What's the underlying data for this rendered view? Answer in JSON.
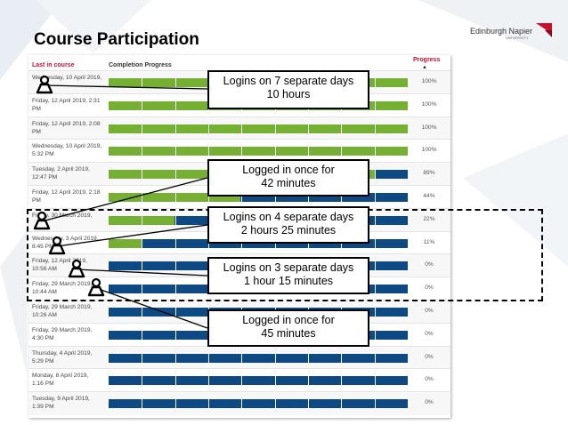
{
  "slide": {
    "title": "Course Participation",
    "logo_text": "Edinburgh Napier",
    "logo_subtext": "UNIVERSITY",
    "accent_color": "#c8102e"
  },
  "report": {
    "headers": {
      "last_in_course": "Last in course",
      "completion_progress": "Completion Progress",
      "progress": "Progress",
      "sort_icon": "sort-up-icon"
    },
    "complete_color": "#76b033",
    "incomplete_color": "#0d4a83",
    "rows": [
      {
        "date": "Wednesday, 10 April 2019,",
        "time": "",
        "progress": 1.0,
        "pct": "100%"
      },
      {
        "date": "Friday, 12 April 2019, 2:31",
        "time": "PM",
        "progress": 1.0,
        "pct": "100%"
      },
      {
        "date": "Friday, 12 April 2019, 2:08",
        "time": "PM",
        "progress": 1.0,
        "pct": "100%"
      },
      {
        "date": "Wednesday, 10 April 2019,",
        "time": "5:32 PM",
        "progress": 1.0,
        "pct": "100%"
      },
      {
        "date": "Tuesday, 2 April 2019,",
        "time": "12:47 PM",
        "progress": 0.89,
        "pct": "89%"
      },
      {
        "date": "Friday, 12 April 2019, 2:18",
        "time": "PM",
        "progress": 0.44,
        "pct": "44%"
      },
      {
        "date": "Friday, 30 March 2019,",
        "time": "",
        "progress": 0.22,
        "pct": "22%"
      },
      {
        "date": "Wednesday, 3 April 2019,",
        "time": "8:45 PM",
        "progress": 0.11,
        "pct": "11%"
      },
      {
        "date": "Friday, 12 April 2019,",
        "time": "10:56 AM",
        "progress": 0.0,
        "pct": "0%"
      },
      {
        "date": "Friday, 29 March 2019,",
        "time": "10:44 AM",
        "progress": 0.0,
        "pct": "0%"
      },
      {
        "date": "Friday, 29 March 2019,",
        "time": "10:26 AM",
        "progress": 0.0,
        "pct": "0%"
      },
      {
        "date": "Friday, 29 March 2019,",
        "time": "4:30 PM",
        "progress": 0.0,
        "pct": "0%"
      },
      {
        "date": "Thursday, 4 April 2019,",
        "time": "5:29 PM",
        "progress": 0.0,
        "pct": "0%"
      },
      {
        "date": "Monday, 8 April 2019,",
        "time": "1:16 PM",
        "progress": 0.0,
        "pct": "0%"
      },
      {
        "date": "Tuesday, 9 April 2019,",
        "time": "1:39 PM",
        "progress": 0.0,
        "pct": "0%"
      }
    ]
  },
  "callouts": [
    {
      "line1": "Logins on 7 separate days",
      "line2": "10 hours"
    },
    {
      "line1": "Logged in once for",
      "line2": "42 minutes"
    },
    {
      "line1": "Logins on 4 separate days",
      "line2": "2 hours 25 minutes"
    },
    {
      "line1": "Logins on 3 separate days",
      "line2": "1 hour 15 minutes"
    },
    {
      "line1": "Logged in once for",
      "line2": "45 minutes"
    }
  ],
  "icons": {
    "student": "student-person-icon"
  }
}
